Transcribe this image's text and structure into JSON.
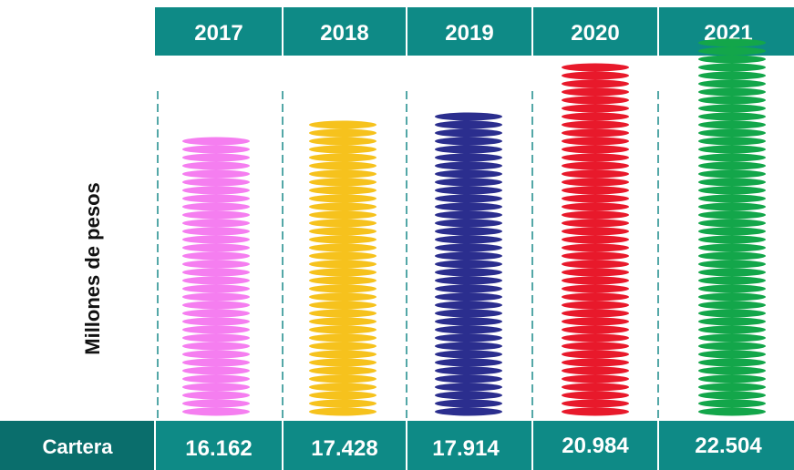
{
  "colors": {
    "header_bg": "#0e8a86",
    "footer_bg": "#0a6e6c",
    "separator": "#ffffff",
    "dashed_line": "#1a8a8a"
  },
  "chart_data": {
    "type": "bar",
    "style": "stacked-coins",
    "categories": [
      "2017",
      "2018",
      "2019",
      "2020",
      "2021"
    ],
    "value_labels": [
      "16.162",
      "17.428",
      "17.914",
      "20.984",
      "22.504"
    ],
    "row_label": "Cartera",
    "ylabel": "Millones de pesos",
    "series": [
      {
        "values": [
          16162,
          17428,
          17914,
          20984,
          22504
        ],
        "colors": [
          "#f57ef0",
          "#f6c21d",
          "#2b2e8e",
          "#e8192b",
          "#13a64a"
        ]
      }
    ],
    "grid": false,
    "legend": "none"
  }
}
